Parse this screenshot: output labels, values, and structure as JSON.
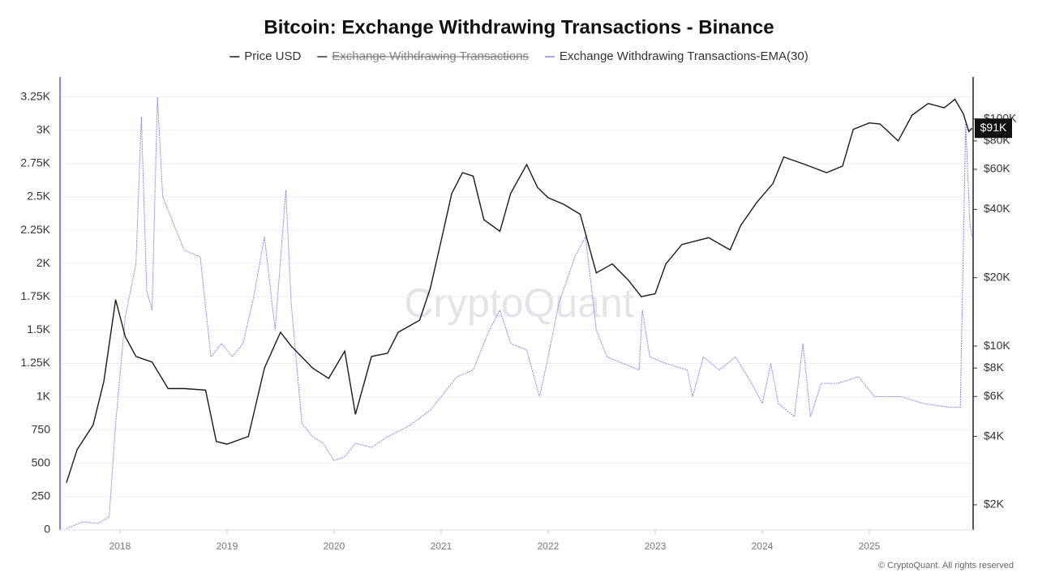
{
  "chart_data": {
    "type": "line",
    "title": "Bitcoin: Exchange Withdrawing Transactions - Binance",
    "watermark": "CryptoQuant",
    "copyright": "© CryptoQuant. All rights reserved",
    "xlim": [
      2017.44,
      2025.97
    ],
    "xticks": [
      2018,
      2019,
      2020,
      2021,
      2022,
      2023,
      2024,
      2025
    ],
    "ylim": [
      0,
      3400
    ],
    "yticks": [
      0,
      250,
      500,
      750,
      {
        "value": 1000,
        "label": "1K"
      },
      {
        "value": 1250,
        "label": "1.25K"
      },
      {
        "value": 1500,
        "label": "1.5K"
      },
      {
        "value": 1750,
        "label": "1.75K"
      },
      {
        "value": 2000,
        "label": "2K"
      },
      {
        "value": 2250,
        "label": "2.25K"
      },
      {
        "value": 2500,
        "label": "2.5K"
      },
      {
        "value": 2750,
        "label": "2.75K"
      },
      {
        "value": 3000,
        "label": "3K"
      },
      {
        "value": 3250,
        "label": "3.25K"
      }
    ],
    "y2lim": [
      1550,
      153000
    ],
    "y2_log": true,
    "y2ticks": [
      {
        "value": 2000,
        "label": "$2K"
      },
      {
        "value": 4000,
        "label": "$4K"
      },
      {
        "value": 6000,
        "label": "$6K"
      },
      {
        "value": 8000,
        "label": "$8K"
      },
      {
        "value": 10000,
        "label": "$10K"
      },
      {
        "value": 20000,
        "label": "$20K"
      },
      {
        "value": 40000,
        "label": "$40K"
      },
      {
        "value": 60000,
        "label": "$60K"
      },
      {
        "value": 80000,
        "label": "$80K"
      },
      {
        "value": 100000,
        "label": "$100K"
      }
    ],
    "grid": true,
    "annotations": [
      {
        "value": 91000,
        "label": "$91K"
      }
    ],
    "series": [
      {
        "name": "Price USD",
        "color": "#1a1a1a",
        "axis": "y2",
        "visible": true,
        "x": [
          2017.5,
          2017.6,
          2017.75,
          2017.85,
          2017.96,
          2018.05,
          2018.15,
          2018.3,
          2018.45,
          2018.6,
          2018.8,
          2018.9,
          2019.0,
          2019.2,
          2019.35,
          2019.5,
          2019.6,
          2019.8,
          2019.95,
          2020.1,
          2020.2,
          2020.35,
          2020.5,
          2020.6,
          2020.8,
          2020.9,
          2021.0,
          2021.1,
          2021.2,
          2021.3,
          2021.4,
          2021.55,
          2021.65,
          2021.8,
          2021.9,
          2022.0,
          2022.15,
          2022.3,
          2022.45,
          2022.6,
          2022.75,
          2022.87,
          2023.0,
          2023.1,
          2023.25,
          2023.5,
          2023.7,
          2023.8,
          2023.95,
          2024.1,
          2024.2,
          2024.4,
          2024.6,
          2024.75,
          2024.85,
          2025.0,
          2025.1,
          2025.27,
          2025.4,
          2025.55,
          2025.7,
          2025.8,
          2025.88,
          2025.93,
          2025.96
        ],
        "values": [
          2500,
          3500,
          4500,
          7000,
          16000,
          11000,
          9000,
          8500,
          6500,
          6500,
          6400,
          3800,
          3700,
          4000,
          8000,
          11500,
          10000,
          8000,
          7200,
          9500,
          5000,
          9000,
          9300,
          11500,
          13000,
          18000,
          29000,
          47000,
          58000,
          56000,
          36000,
          32000,
          47000,
          63000,
          50000,
          45000,
          42000,
          38000,
          21000,
          23000,
          19500,
          16500,
          17000,
          23000,
          28000,
          30000,
          26500,
          34000,
          43000,
          52000,
          68000,
          63000,
          58000,
          62000,
          90000,
          96000,
          95000,
          80000,
          104000,
          117000,
          112000,
          122000,
          105000,
          88000,
          91000
        ]
      },
      {
        "name": "Exchange Withdrawing Transactions",
        "color": "#333333",
        "visible": false,
        "x": [],
        "values": []
      },
      {
        "name": "Exchange Withdrawing Transactions-EMA(30)",
        "color": "#8d84e8",
        "visible": true,
        "x": [
          2017.5,
          2017.65,
          2017.8,
          2017.9,
          2017.96,
          2018.05,
          2018.15,
          2018.2,
          2018.25,
          2018.3,
          2018.35,
          2018.4,
          2018.5,
          2018.6,
          2018.75,
          2018.85,
          2018.95,
          2019.05,
          2019.15,
          2019.25,
          2019.35,
          2019.45,
          2019.55,
          2019.6,
          2019.7,
          2019.8,
          2019.9,
          2020.0,
          2020.1,
          2020.2,
          2020.35,
          2020.5,
          2020.7,
          2020.9,
          2021.0,
          2021.15,
          2021.3,
          2021.45,
          2021.55,
          2021.65,
          2021.8,
          2021.92,
          2022.0,
          2022.1,
          2022.25,
          2022.35,
          2022.45,
          2022.55,
          2022.7,
          2022.85,
          2022.88,
          2022.95,
          2023.1,
          2023.3,
          2023.35,
          2023.45,
          2023.6,
          2023.75,
          2023.9,
          2024.0,
          2024.08,
          2024.15,
          2024.3,
          2024.38,
          2024.45,
          2024.55,
          2024.7,
          2024.9,
          2025.05,
          2025.3,
          2025.5,
          2025.75,
          2025.85,
          2025.9,
          2025.94,
          2025.96
        ],
        "values": [
          10,
          60,
          50,
          100,
          800,
          1600,
          2000,
          3100,
          1800,
          1650,
          3250,
          2500,
          2300,
          2100,
          2050,
          1300,
          1400,
          1300,
          1400,
          1750,
          2200,
          1500,
          2550,
          1700,
          800,
          700,
          650,
          520,
          550,
          650,
          620,
          700,
          780,
          900,
          1000,
          1150,
          1200,
          1500,
          1650,
          1400,
          1350,
          1000,
          1300,
          1700,
          2050,
          2200,
          1500,
          1300,
          1250,
          1200,
          1650,
          1300,
          1250,
          1200,
          1000,
          1300,
          1200,
          1300,
          1100,
          950,
          1250,
          950,
          850,
          1400,
          850,
          1100,
          1100,
          1150,
          1000,
          1000,
          950,
          920,
          920,
          3050,
          2300,
          2200
        ]
      }
    ]
  }
}
